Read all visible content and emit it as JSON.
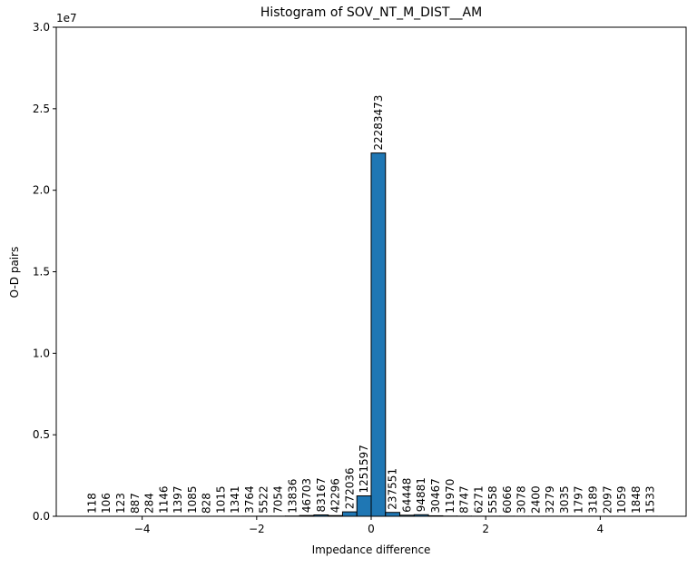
{
  "chart_data": {
    "type": "histogram",
    "title": "Histogram of SOV_NT_M_DIST__AM",
    "x_label": "Impedance difference",
    "y_label": "O-D pairs",
    "y_offset_label": "1e7",
    "bins": [
      -5,
      -4.75,
      -4.5,
      -4.25,
      -4,
      -3.75,
      -3.5,
      -3.25,
      -3,
      -2.75,
      -2.5,
      -2.25,
      -2,
      -1.75,
      -1.5,
      -1.25,
      -1,
      -0.75,
      -0.5,
      -0.25,
      0,
      0.25,
      0.5,
      0.75,
      1,
      1.25,
      1.5,
      1.75,
      2,
      2.25,
      2.5,
      2.75,
      3,
      3.25,
      3.5,
      3.75,
      4,
      4.25,
      4.5,
      4.75,
      5
    ],
    "values": [
      118,
      106,
      123,
      887,
      284,
      1146,
      1397,
      1085,
      828,
      1015,
      1341,
      3764,
      5522,
      7054,
      13836,
      46703,
      83167,
      42296,
      272036,
      1251597,
      22283473,
      237551,
      64448,
      94881,
      30467,
      11970,
      8747,
      6271,
      5558,
      6066,
      3078,
      2400,
      3279,
      3035,
      1797,
      3189,
      2097,
      1059,
      1848,
      1533
    ],
    "color": "#1f77b4",
    "edge_color": "#000000",
    "xlim": [
      -5.5,
      5.5
    ],
    "xticks": [
      {
        "value": -4,
        "label": "−4"
      },
      {
        "value": -2,
        "label": "−2"
      },
      0,
      2,
      4
    ],
    "ylim": [
      0,
      30000000
    ],
    "yticks": [
      {
        "value": 0,
        "label": "0.0"
      },
      {
        "value": 5000000,
        "label": "0.5"
      },
      {
        "value": 10000000,
        "label": "1.0"
      },
      {
        "value": 15000000,
        "label": "1.5"
      },
      {
        "value": 20000000,
        "label": "2.0"
      },
      {
        "value": 25000000,
        "label": "2.5"
      },
      {
        "value": 30000000,
        "label": "3.0"
      }
    ]
  }
}
